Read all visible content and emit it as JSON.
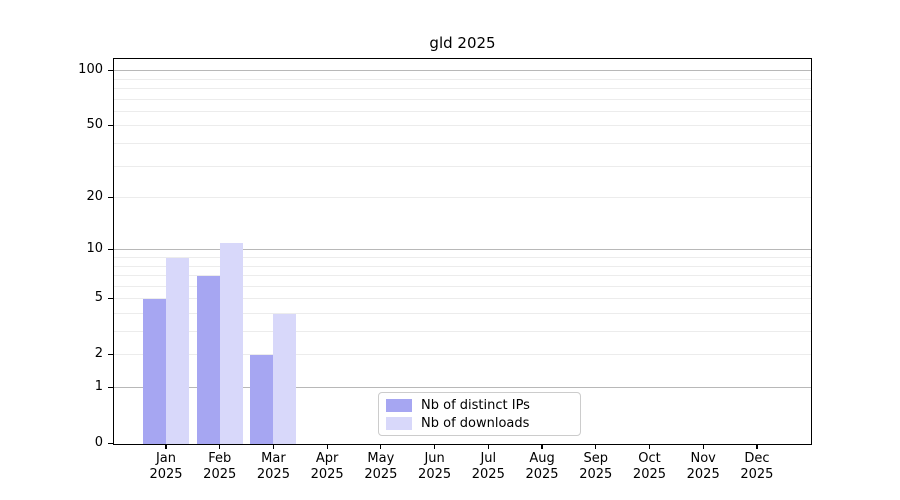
{
  "title": "gld 2025",
  "colors": {
    "distinct_ips": "#a6a6f2",
    "downloads": "#d8d8fa",
    "grid_major": "#b8b8b8",
    "grid_minor": "#ececec",
    "axis": "#000000",
    "legend_border": "#cccccc",
    "background": "#ffffff"
  },
  "legend": {
    "items": [
      {
        "label": "Nb of distinct IPs",
        "color_key": "distinct_ips"
      },
      {
        "label": "Nb of downloads",
        "color_key": "downloads"
      }
    ]
  },
  "chart_data": {
    "type": "bar",
    "title": "gld 2025",
    "months": [
      "Jan",
      "Feb",
      "Mar",
      "Apr",
      "May",
      "Jun",
      "Jul",
      "Aug",
      "Sep",
      "Oct",
      "Nov",
      "Dec"
    ],
    "year": "2025",
    "categories": [
      "Jan 2025",
      "Feb 2025",
      "Mar 2025",
      "Apr 2025",
      "May 2025",
      "Jun 2025",
      "Jul 2025",
      "Aug 2025",
      "Sep 2025",
      "Oct 2025",
      "Nov 2025",
      "Dec 2025"
    ],
    "series": [
      {
        "name": "Nb of distinct IPs",
        "values": [
          5,
          7,
          2,
          0,
          0,
          0,
          0,
          0,
          0,
          0,
          0,
          0
        ]
      },
      {
        "name": "Nb of downloads",
        "values": [
          9,
          11,
          4,
          0,
          0,
          0,
          0,
          0,
          0,
          0,
          0,
          0
        ]
      }
    ],
    "y_ticks": [
      0,
      1,
      2,
      5,
      10,
      20,
      50,
      100
    ],
    "y_major_gridlines": [
      1,
      10,
      100
    ],
    "y_minor_gridlines": [
      2,
      3,
      4,
      5,
      6,
      7,
      8,
      9,
      20,
      30,
      40,
      50,
      60,
      70,
      80,
      90
    ],
    "y_scale": "log1p",
    "ylim": [
      0,
      117
    ],
    "xlabel": "",
    "ylabel": "",
    "legend_position": "lower center inside",
    "grid": true
  }
}
